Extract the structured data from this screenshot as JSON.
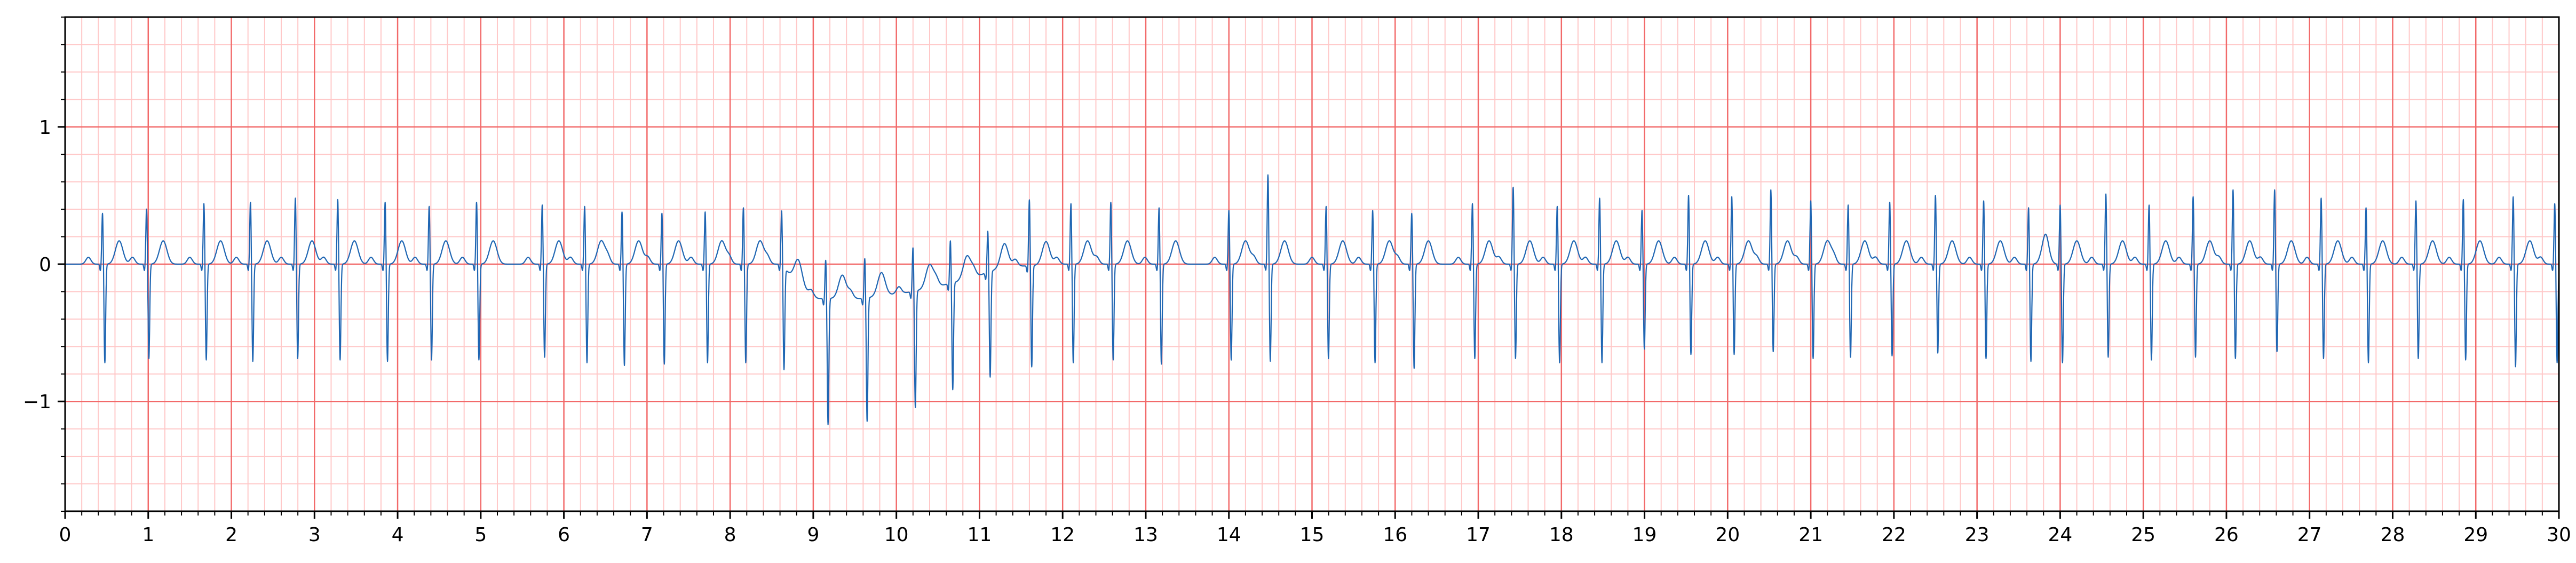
{
  "chart_data": {
    "type": "line",
    "title": "",
    "xlabel": "",
    "ylabel": "",
    "xlim": [
      0,
      30
    ],
    "ylim": [
      -1.8,
      1.8
    ],
    "x_ticks": [
      0,
      1,
      2,
      3,
      4,
      5,
      6,
      7,
      8,
      9,
      10,
      11,
      12,
      13,
      14,
      15,
      16,
      17,
      18,
      19,
      20,
      21,
      22,
      23,
      24,
      25,
      26,
      27,
      28,
      29,
      30
    ],
    "x_tick_labels": [
      "0",
      "1",
      "2",
      "3",
      "4",
      "5",
      "6",
      "7",
      "8",
      "9",
      "10",
      "11",
      "12",
      "13",
      "14",
      "15",
      "16",
      "17",
      "18",
      "19",
      "20",
      "21",
      "22",
      "23",
      "24",
      "25",
      "26",
      "27",
      "28",
      "29",
      "30"
    ],
    "y_ticks": [
      -1,
      0,
      1
    ],
    "y_tick_labels": [
      "−1",
      "0",
      "1"
    ],
    "grid": {
      "major": true,
      "minor": true,
      "major_x_step": 1.0,
      "minor_x_step": 0.2,
      "major_y_step": 1.0,
      "minor_y_step": 0.2,
      "major_color": "#f26a6a",
      "minor_color": "#ffc8c8"
    },
    "line_color": "#1f66b3",
    "series": [
      {
        "beats_x": [
          0.45,
          0.98,
          1.67,
          2.23,
          2.77,
          3.28,
          3.85,
          4.38,
          4.95,
          5.74,
          6.25,
          6.7,
          7.18,
          7.7,
          8.16,
          8.62,
          9.15,
          9.62,
          10.2,
          10.65,
          11.1,
          11.6,
          12.1,
          12.58,
          13.16,
          14.0,
          14.47,
          15.17,
          15.73,
          16.2,
          16.93,
          17.42,
          17.95,
          18.46,
          18.97,
          19.53,
          20.05,
          20.52,
          21.0,
          21.45,
          21.95,
          22.5,
          23.08,
          23.62,
          24.0,
          24.55,
          25.07,
          25.6,
          26.08,
          26.58,
          27.14,
          27.68,
          28.28,
          28.85,
          29.45,
          29.95
        ],
        "r_amplitude": [
          0.38,
          0.41,
          0.45,
          0.46,
          0.49,
          0.48,
          0.46,
          0.43,
          0.46,
          0.44,
          0.43,
          0.39,
          0.38,
          0.39,
          0.42,
          0.41,
          0.29,
          0.3,
          0.33,
          0.32,
          0.31,
          0.49,
          0.45,
          0.46,
          0.42,
          0.4,
          0.66,
          0.43,
          0.4,
          0.38,
          0.45,
          0.57,
          0.43,
          0.49,
          0.4,
          0.51,
          0.5,
          0.55,
          0.47,
          0.44,
          0.46,
          0.51,
          0.47,
          0.42,
          0.44,
          0.52,
          0.44,
          0.5,
          0.55,
          0.55,
          0.49,
          0.42,
          0.47,
          0.48,
          0.5,
          0.45
        ],
        "s_amplitude": [
          -0.72,
          -0.69,
          -0.7,
          -0.71,
          -0.69,
          -0.7,
          -0.71,
          -0.7,
          -0.7,
          -0.68,
          -0.72,
          -0.74,
          -0.73,
          -0.72,
          -0.72,
          -0.74,
          -0.92,
          -0.9,
          -0.85,
          -0.78,
          -0.77,
          -0.74,
          -0.72,
          -0.7,
          -0.73,
          -0.7,
          -0.71,
          -0.69,
          -0.72,
          -0.76,
          -0.69,
          -0.69,
          -0.72,
          -0.72,
          -0.62,
          -0.66,
          -0.66,
          -0.64,
          -0.69,
          -0.68,
          -0.67,
          -0.65,
          -0.69,
          -0.71,
          -0.72,
          -0.68,
          -0.7,
          -0.68,
          -0.69,
          -0.64,
          -0.69,
          -0.72,
          -0.69,
          -0.7,
          -0.75,
          -0.72
        ],
        "baseline_wander": [
          {
            "x": 0.0,
            "y": 0.0
          },
          {
            "x": 8.6,
            "y": 0.0
          },
          {
            "x": 9.0,
            "y": -0.25
          },
          {
            "x": 9.6,
            "y": -0.25
          },
          {
            "x": 10.2,
            "y": -0.2
          },
          {
            "x": 10.8,
            "y": -0.12
          },
          {
            "x": 11.3,
            "y": -0.02
          },
          {
            "x": 12.0,
            "y": 0.0
          },
          {
            "x": 30.0,
            "y": 0.0
          }
        ],
        "t_wave_amplitude": 0.17
      }
    ]
  }
}
